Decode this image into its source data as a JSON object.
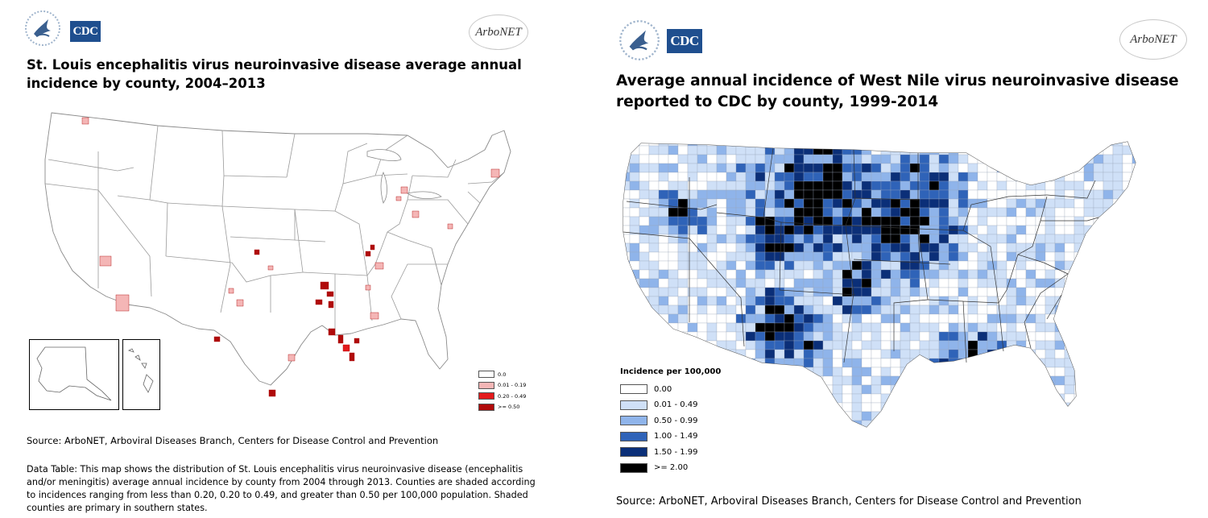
{
  "left": {
    "logo_agency": "CDC",
    "logo_network": "ArboNET",
    "title": "St. Louis encephalitis virus neuroinvasive disease average annual incidence by county, 2004–2013",
    "legend": [
      {
        "label": "0.0",
        "color": "#ffffff"
      },
      {
        "label": "0.01 - 0.19",
        "color": "#f4b6b6"
      },
      {
        "label": "0.20 - 0.49",
        "color": "#e31a1c"
      },
      {
        "label": ">= 0.50",
        "color": "#b00a0a"
      }
    ],
    "source": "Source: ArboNET, Arboviral Diseases Branch, Centers for Disease Control and Prevention",
    "description": "Data Table: This map shows the distribution of St. Louis encephalitis virus neuroinvasive disease (encephalitis and/or meningitis) average annual incidence by county from 2004 through 2013. Counties are shaded according to incidences ranging from less than 0.20, 0.20 to 0.49, and greater than 0.50 per 100,000 population. Shaded counties are primary in southern states."
  },
  "right": {
    "logo_agency": "CDC",
    "logo_network": "ArboNET",
    "title": "Average annual incidence of West Nile virus neuroinvasive disease reported to CDC by county, 1999-2014",
    "legend_title": "Incidence per 100,000",
    "legend": [
      {
        "label": "0.00",
        "color": "#ffffff"
      },
      {
        "label": "0.01 - 0.49",
        "color": "#cfe0f7"
      },
      {
        "label": "0.50 - 0.99",
        "color": "#8fb4ea"
      },
      {
        "label": "1.00 - 1.49",
        "color": "#2f63b8"
      },
      {
        "label": "1.50 - 1.99",
        "color": "#0b2f78"
      },
      {
        "label": ">= 2.00",
        "color": "#000000"
      }
    ],
    "source": "Source:  ArboNET, Arboviral Diseases Branch, Centers for Disease Control and Prevention"
  }
}
